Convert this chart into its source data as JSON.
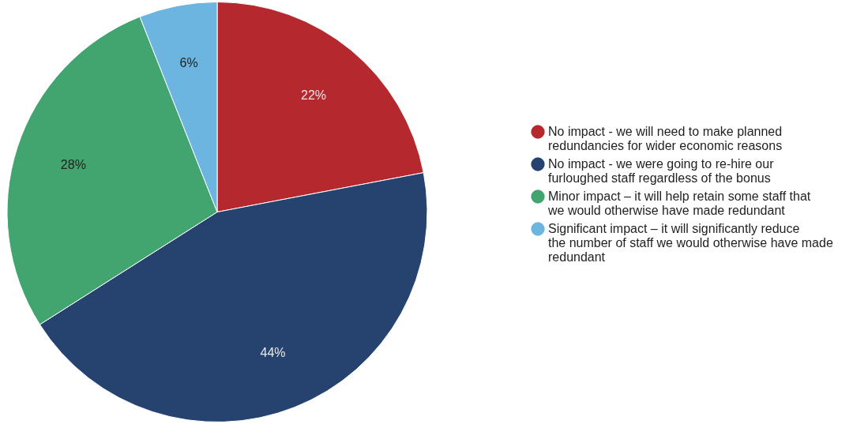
{
  "chart_data": {
    "type": "pie",
    "categories": [
      "No impact - we will need to make planned redundancies for wider economic reasons",
      "No impact - we were going to re-hire our furloughed staff regardless of the bonus",
      "Minor impact – it will help retain some staff that we would otherwise have made redundant",
      "Significant impact – it will significantly reduce the number of staff we would otherwise have made redundant"
    ],
    "values": [
      22,
      44,
      28,
      6
    ],
    "colors": [
      "#b5292e",
      "#25436e",
      "#42a56f",
      "#6bb5e0"
    ],
    "value_labels": [
      "22%",
      "44%",
      "28%",
      "6%"
    ],
    "legend": "right"
  }
}
